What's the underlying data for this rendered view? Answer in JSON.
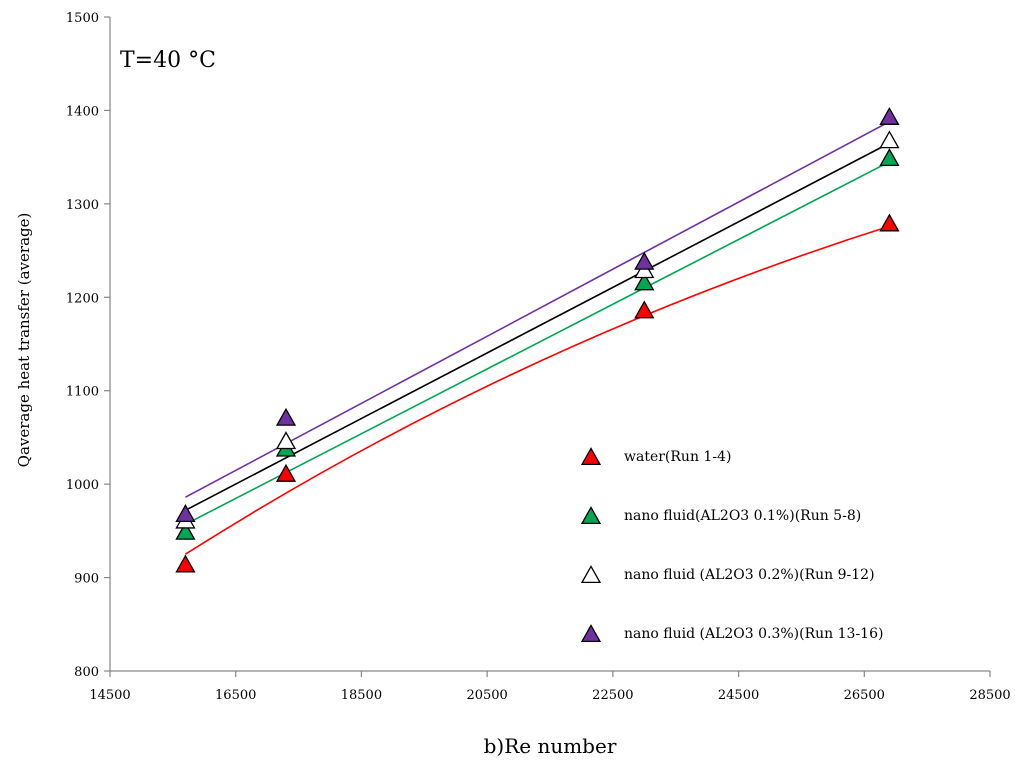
{
  "chart_data": {
    "type": "scatter",
    "annotation": "T=40 °C",
    "xlabel": "b)Re number",
    "ylabel": "Qaverage heat transfer  (average)",
    "xlim": [
      14500,
      28500
    ],
    "ylim": [
      800,
      1500
    ],
    "xticks": [
      14500,
      16500,
      18500,
      20500,
      22500,
      24500,
      26500,
      28500
    ],
    "yticks": [
      800,
      900,
      1000,
      1100,
      1200,
      1300,
      1400,
      1500
    ],
    "grid": false,
    "legend_position": "lower-right",
    "series": [
      {
        "name": "water(Run 1-4)",
        "color": "#ff0000",
        "marker_fill": "#ff0000",
        "line_color": "#ff0000",
        "x": [
          15700,
          17300,
          23000,
          26900
        ],
        "y": [
          913,
          1010,
          1185,
          1278
        ],
        "trend_y_start": 925,
        "trend_y_end": 1276,
        "trend_curvature": 0.26
      },
      {
        "name": "nano fluid(AL2O3 0.1%)(Run 5-8)",
        "color": "#00a651",
        "marker_fill": "#00a651",
        "line_color": "#00a651",
        "x": [
          15700,
          17300,
          23000,
          26900
        ],
        "y": [
          948,
          1037,
          1215,
          1348
        ],
        "trend_y_start": 957,
        "trend_y_end": 1345,
        "trend_curvature": 0.0
      },
      {
        "name": "nano fluid (AL2O3 0.2%)(Run 9-12)",
        "color": "#000000",
        "marker_fill": "#ffffff",
        "line_color": "#000000",
        "x": [
          15700,
          17300,
          23000,
          26900
        ],
        "y": [
          960,
          1045,
          1228,
          1367
        ],
        "trend_y_start": 972,
        "trend_y_end": 1365,
        "trend_curvature": 0.0
      },
      {
        "name": "nano fluid (AL2O3 0.3%)(Run 13-16)",
        "color": "#7030a0",
        "marker_fill": "#7030a0",
        "line_color": "#7030a0",
        "x": [
          15700,
          17300,
          23000,
          26900
        ],
        "y": [
          967,
          1070,
          1237,
          1392
        ],
        "trend_y_start": 986,
        "trend_y_end": 1388,
        "trend_curvature": 0.0
      }
    ]
  }
}
